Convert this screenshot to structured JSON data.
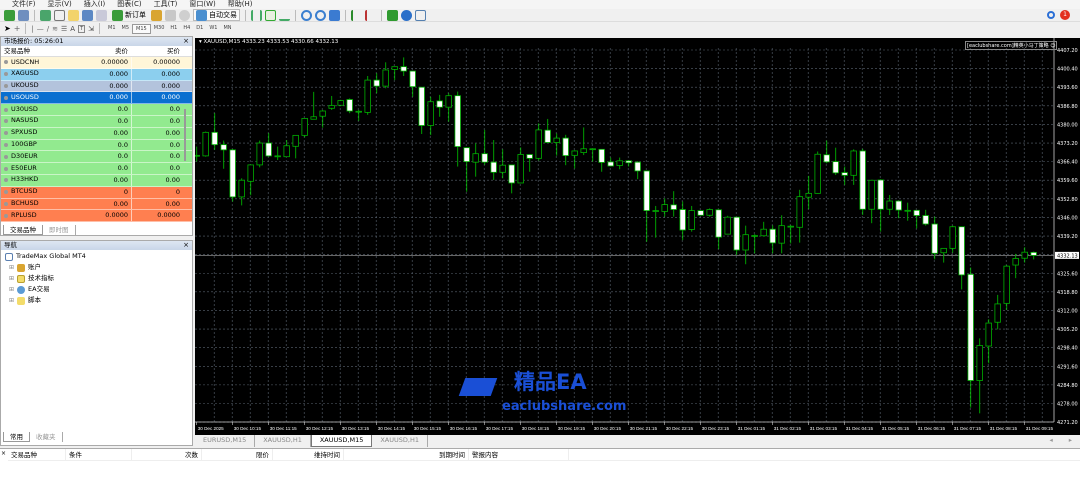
{
  "menu": [
    "文件(F)",
    "显示(V)",
    "插入(I)",
    "图表(C)",
    "工具(T)",
    "窗口(W)",
    "帮助(H)"
  ],
  "toolbar": {
    "new_order": "新订单",
    "auto_trading": "自动交易",
    "timeframes": [
      "M1",
      "M5",
      "M15",
      "M30",
      "H1",
      "H4",
      "D1",
      "W1",
      "MN"
    ],
    "active_timeframe": "M15",
    "notification_count": "1"
  },
  "market_watch": {
    "title": "市场报价: 05:26:01",
    "columns": [
      "交易品种",
      "卖价",
      "买价"
    ],
    "rows": [
      {
        "symbol": "USDCNH",
        "bid": "0.00000",
        "ask": "0.00000",
        "color": "#fff6d8"
      },
      {
        "symbol": "XAGUSD",
        "bid": "0.000",
        "ask": "0.000",
        "color": "#8ccfee"
      },
      {
        "symbol": "UKOUSD",
        "bid": "0.000",
        "ask": "0.000",
        "color": "#b3c3dc"
      },
      {
        "symbol": "USOUSD",
        "bid": "0.000",
        "ask": "0.000",
        "color": "#0a6fd0",
        "selected": true
      },
      {
        "symbol": "U30USD",
        "bid": "0.0",
        "ask": "0.0",
        "color": "#92ea8f"
      },
      {
        "symbol": "NASUSD",
        "bid": "0.0",
        "ask": "0.0",
        "color": "#92ea8f"
      },
      {
        "symbol": "SPXUSD",
        "bid": "0.00",
        "ask": "0.00",
        "color": "#92ea8f"
      },
      {
        "symbol": "100GBP",
        "bid": "0.0",
        "ask": "0.0",
        "color": "#92ea8f"
      },
      {
        "symbol": "D30EUR",
        "bid": "0.0",
        "ask": "0.0",
        "color": "#92ea8f"
      },
      {
        "symbol": "E50EUR",
        "bid": "0.0",
        "ask": "0.0",
        "color": "#92ea8f"
      },
      {
        "symbol": "H33HKD",
        "bid": "0.00",
        "ask": "0.00",
        "color": "#92ea8f"
      },
      {
        "symbol": "BTCUSD",
        "bid": "0",
        "ask": "0",
        "color": "#ff7f50"
      },
      {
        "symbol": "BCHUSD",
        "bid": "0.00",
        "ask": "0.00",
        "color": "#ff7f50"
      },
      {
        "symbol": "RPLUSD",
        "bid": "0.0000",
        "ask": "0.0000",
        "color": "#ff7f50"
      }
    ],
    "tabs": [
      "交易品种",
      "即时图"
    ]
  },
  "navigator": {
    "title": "导航",
    "root": "TradeMax Global MT4",
    "items": [
      "账户",
      "技术指标",
      "EA交易",
      "脚本"
    ],
    "tabs": [
      "常用",
      "收藏夹"
    ]
  },
  "chart": {
    "header": "XAUUSD,M15  4333.23 4333.53 4330.66 4332.13",
    "watermark_text": "[eaclubshare.com]精英小马丁策略",
    "tabs": [
      "EURUSD,M15",
      "XAUUSD,H1",
      "XAUUSD,M15",
      "XAUUSD,H1"
    ],
    "active_tab": 2,
    "logo": {
      "line1": "精品EA",
      "line2": "eaclubshare.com",
      "color": "#1a4fd6"
    }
  },
  "terminal": {
    "columns": [
      "交易品种",
      "条件",
      "次数",
      "限价",
      "维持时间",
      "到期时间",
      "警报内容"
    ]
  },
  "chart_data": {
    "type": "candlestick",
    "symbol": "XAUUSD",
    "timeframe": "M15",
    "ylim": [
      4271.6,
      4407.2
    ],
    "price_ticks": [
      "4407.20",
      "4400.40",
      "4393.60",
      "4386.80",
      "4380.00",
      "4373.20",
      "4366.40",
      "4359.60",
      "4352.80",
      "4346.00",
      "4339.20",
      "4325.60",
      "4318.80",
      "4312.00",
      "4305.20",
      "4298.40",
      "4291.60",
      "4284.80",
      "4278.00",
      "4271.20"
    ],
    "current_price": "4332.13",
    "time_labels": [
      "30 Dec 2025",
      "30 Dec 10:15",
      "30 Dec 11:15",
      "30 Dec 12:15",
      "30 Dec 13:15",
      "30 Dec 14:15",
      "30 Dec 15:15",
      "30 Dec 16:15",
      "30 Dec 17:15",
      "30 Dec 18:15",
      "30 Dec 19:15",
      "30 Dec 20:15",
      "30 Dec 21:15",
      "30 Dec 22:15",
      "30 Dec 23:15",
      "31 Dec 01:15",
      "31 Dec 02:15",
      "31 Dec 03:15",
      "31 Dec 04:15",
      "31 Dec 05:15",
      "31 Dec 06:15",
      "31 Dec 07:15",
      "31 Dec 08:15",
      "31 Dec 09:15"
    ],
    "grid": true,
    "colors": {
      "background": "#000000",
      "candle_outline": "#00b000",
      "bear_fill": "#ffffff",
      "bull_fill": "#000000",
      "grid": "#5a6470"
    },
    "ohlc": [
      [
        4368.7,
        4371.9,
        4366.4,
        4368.7
      ],
      [
        4368.5,
        4377.4,
        4368.2,
        4377.1
      ],
      [
        4377.1,
        4384.1,
        4370.7,
        4372.6
      ],
      [
        4372.6,
        4374.1,
        4363.8,
        4370.7
      ],
      [
        4370.7,
        4371.0,
        4351.8,
        4353.5
      ],
      [
        4353.5,
        4360.3,
        4350.4,
        4359.6
      ],
      [
        4359.2,
        4365.4,
        4354.1,
        4365.2
      ],
      [
        4365.2,
        4374.1,
        4364.3,
        4373.2
      ],
      [
        4373.2,
        4376.8,
        4368.2,
        4368.5
      ],
      [
        4368.5,
        4371.9,
        4367.0,
        4368.5
      ],
      [
        4368.2,
        4374.3,
        4368.2,
        4372.2
      ],
      [
        4372.0,
        4376.1,
        4367.6,
        4376.0
      ],
      [
        4376.0,
        4382.3,
        4375.3,
        4382.2
      ],
      [
        4381.9,
        4391.9,
        4381.8,
        4382.8
      ],
      [
        4383.0,
        4385.3,
        4378.8,
        4384.9
      ],
      [
        4385.9,
        4390.4,
        4385.3,
        4386.9
      ],
      [
        4387.0,
        4389.0,
        4386.9,
        4388.7
      ],
      [
        4389.1,
        4389.5,
        4384.1,
        4384.9
      ],
      [
        4384.8,
        4385.3,
        4381.3,
        4384.8
      ],
      [
        4384.4,
        4397.7,
        4383.5,
        4396.2
      ],
      [
        4396.2,
        4398.7,
        4391.4,
        4394.0
      ],
      [
        4394.0,
        4402.7,
        4393.2,
        4399.9
      ],
      [
        4400.1,
        4401.2,
        4396.2,
        4401.1
      ],
      [
        4401.1,
        4404.5,
        4397.7,
        4399.5
      ],
      [
        4399.5,
        4399.6,
        4390.1,
        4393.8
      ],
      [
        4393.6,
        4393.7,
        4376.5,
        4379.6
      ],
      [
        4379.6,
        4390.1,
        4376.1,
        4388.3
      ],
      [
        4388.6,
        4390.8,
        4382.8,
        4386.3
      ],
      [
        4386.3,
        4391.4,
        4381.0,
        4390.5
      ],
      [
        4390.5,
        4392.0,
        4364.6,
        4371.9
      ],
      [
        4371.5,
        4371.6,
        4355.4,
        4366.4
      ],
      [
        4366.2,
        4373.1,
        4360.9,
        4369.3
      ],
      [
        4369.3,
        4378.0,
        4365.2,
        4366.2
      ],
      [
        4366.2,
        4374.3,
        4359.7,
        4362.5
      ],
      [
        4362.5,
        4370.9,
        4360.3,
        4365.1
      ],
      [
        4365.2,
        4365.3,
        4354.8,
        4358.6
      ],
      [
        4358.6,
        4371.6,
        4358.5,
        4369.0
      ],
      [
        4369.0,
        4369.1,
        4362.7,
        4367.6
      ],
      [
        4367.6,
        4380.4,
        4366.8,
        4378.0
      ],
      [
        4377.9,
        4382.0,
        4373.3,
        4373.4
      ],
      [
        4373.4,
        4376.7,
        4368.6,
        4375.0
      ],
      [
        4375.0,
        4376.2,
        4365.1,
        4368.6
      ],
      [
        4368.7,
        4370.6,
        4363.9,
        4370.3
      ],
      [
        4369.7,
        4378.9,
        4368.8,
        4371.1
      ],
      [
        4371.1,
        4371.2,
        4366.4,
        4371.1
      ],
      [
        4370.9,
        4371.0,
        4362.7,
        4366.1
      ],
      [
        4366.3,
        4367.9,
        4364.6,
        4364.8
      ],
      [
        4365.0,
        4367.9,
        4363.6,
        4366.7
      ],
      [
        4366.7,
        4367.0,
        4364.6,
        4366.0
      ],
      [
        4366.2,
        4366.6,
        4360.0,
        4363.0
      ],
      [
        4363.0,
        4363.1,
        4337.1,
        4348.5
      ],
      [
        4348.5,
        4350.2,
        4338.6,
        4348.5
      ],
      [
        4348.2,
        4353.0,
        4346.3,
        4350.7
      ],
      [
        4350.6,
        4355.6,
        4346.3,
        4348.9
      ],
      [
        4348.9,
        4351.8,
        4337.7,
        4341.4
      ],
      [
        4341.6,
        4350.2,
        4340.8,
        4348.5
      ],
      [
        4348.5,
        4348.6,
        4346.7,
        4346.8
      ],
      [
        4346.8,
        4349.3,
        4346.3,
        4348.9
      ],
      [
        4348.8,
        4348.9,
        4334.4,
        4338.8
      ],
      [
        4339.9,
        4346.6,
        4339.8,
        4346.1
      ],
      [
        4346.1,
        4346.2,
        4332.3,
        4334.1
      ],
      [
        4334.1,
        4343.0,
        4328.9,
        4339.7
      ],
      [
        4339.4,
        4339.9,
        4332.9,
        4339.4
      ],
      [
        4339.3,
        4344.4,
        4339.0,
        4341.7
      ],
      [
        4341.7,
        4343.1,
        4332.9,
        4336.7
      ],
      [
        4336.6,
        4346.8,
        4332.9,
        4343.0
      ],
      [
        4342.8,
        4343.2,
        4336.5,
        4342.8
      ],
      [
        4342.4,
        4356.1,
        4336.8,
        4353.6
      ],
      [
        4353.4,
        4361.2,
        4349.0,
        4354.8
      ],
      [
        4354.8,
        4370.1,
        4354.7,
        4369.1
      ],
      [
        4368.9,
        4374.1,
        4365.8,
        4366.3
      ],
      [
        4366.4,
        4371.5,
        4361.5,
        4362.3
      ],
      [
        4362.4,
        4364.6,
        4357.9,
        4361.4
      ],
      [
        4361.4,
        4370.9,
        4357.9,
        4370.3
      ],
      [
        4370.3,
        4371.1,
        4346.9,
        4349.0
      ],
      [
        4349.0,
        4359.7,
        4343.9,
        4359.6
      ],
      [
        4359.7,
        4360.0,
        4340.8,
        4349.0
      ],
      [
        4349.0,
        4354.2,
        4346.9,
        4352.0
      ],
      [
        4352.0,
        4352.1,
        4345.7,
        4348.7
      ],
      [
        4348.6,
        4351.4,
        4344.8,
        4348.6
      ],
      [
        4348.6,
        4348.7,
        4342.0,
        4346.7
      ],
      [
        4346.7,
        4348.8,
        4343.0,
        4343.6
      ],
      [
        4343.6,
        4346.3,
        4330.7,
        4332.9
      ],
      [
        4333.1,
        4334.8,
        4329.5,
        4334.7
      ],
      [
        4334.7,
        4343.0,
        4333.1,
        4342.6
      ],
      [
        4342.6,
        4342.7,
        4319.7,
        4325.0
      ],
      [
        4325.2,
        4327.7,
        4276.5,
        4286.4
      ],
      [
        4286.4,
        4301.8,
        4274.4,
        4299.2
      ],
      [
        4299.0,
        4308.8,
        4292.7,
        4307.4
      ],
      [
        4307.7,
        4317.7,
        4305.1,
        4314.4
      ],
      [
        4314.6,
        4328.6,
        4312.2,
        4328.2
      ],
      [
        4328.6,
        4332.7,
        4323.8,
        4331.0
      ],
      [
        4331.1,
        4335.1,
        4329.5,
        4333.3
      ],
      [
        4333.23,
        4333.53,
        4330.66,
        4332.13
      ]
    ]
  }
}
